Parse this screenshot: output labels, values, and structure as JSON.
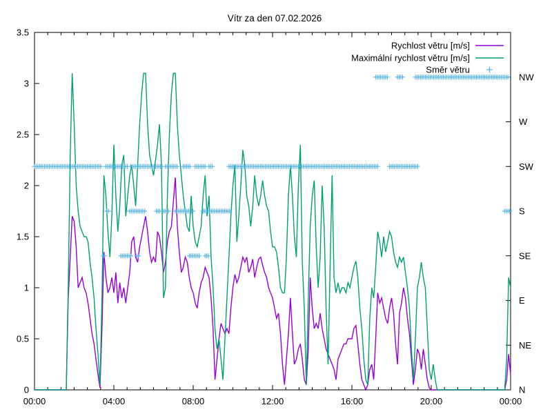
{
  "page": {
    "background": "#ffffff"
  },
  "chart_data": {
    "type": "line",
    "title": "Vítr za den 07.02.2026",
    "grid": false,
    "legend_position": "top-right-inside",
    "frame_color": "#000000",
    "text_color": "#000000",
    "x_axis": {
      "range_hours": [
        0,
        24
      ],
      "major_tick_hours": [
        0,
        4,
        8,
        12,
        16,
        20,
        24
      ],
      "major_tick_labels": [
        "00:00",
        "04:00",
        "08:00",
        "12:00",
        "16:00",
        "20:00",
        "00:00"
      ],
      "minor_tick_step_hours": 0.6667
    },
    "y_left_axis": {
      "range": [
        0,
        3.5
      ],
      "tick_values": [
        0,
        0.5,
        1,
        1.5,
        2,
        2.5,
        3,
        3.5
      ],
      "tick_labels": [
        "0",
        "0.5",
        "1",
        "1.5",
        "2",
        "2.5",
        "3",
        "3.5"
      ]
    },
    "y_right_axis": {
      "labels": [
        "N",
        "NE",
        "E",
        "SE",
        "S",
        "SW",
        "W",
        "NW"
      ],
      "values": [
        0,
        0.4375,
        0.875,
        1.3125,
        1.75,
        2.1875,
        2.625,
        3.0625
      ]
    },
    "sample_start_hour": 0,
    "sample_step_hours": 0.1,
    "series": [
      {
        "name": "Rychlost větru [m/s]",
        "color": "#9400d3",
        "kind": "line",
        "values": [
          0,
          0,
          0,
          0,
          0,
          0,
          0,
          0,
          0,
          0,
          0,
          0,
          0,
          0,
          0,
          0,
          0,
          0.9,
          1.3,
          1.7,
          1.65,
          1.4,
          1.0,
          1.05,
          1.1,
          1.0,
          0.95,
          0.85,
          0.7,
          0.55,
          0.45,
          0.3,
          0.15,
          0.02,
          0.6,
          1.35,
          1.1,
          0.95,
          1.0,
          1.1,
          0.95,
          1.15,
          0.85,
          1.05,
          0.9,
          1.0,
          0.85,
          1.0,
          1.15,
          1.45,
          1.5,
          1.3,
          1.25,
          1.4,
          1.5,
          1.6,
          1.7,
          1.55,
          1.35,
          1.25,
          1.3,
          1.25,
          1.55,
          1.5,
          1.35,
          1.15,
          1.25,
          1.45,
          1.55,
          1.6,
          1.85,
          2.08,
          1.6,
          1.35,
          1.15,
          1.2,
          1.3,
          1.25,
          1.1,
          1.0,
          0.95,
          0.85,
          0.8,
          0.95,
          1.05,
          1.1,
          1.2,
          1.15,
          1.1,
          0.9,
          0.6,
          0.1,
          0.3,
          0.5,
          0.65,
          0.6,
          0.55,
          0.6,
          0.55,
          0.8,
          1.0,
          1.13,
          1.05,
          1.1,
          1.2,
          1.3,
          1.25,
          1.3,
          1.15,
          1.2,
          1.28,
          1.1,
          1.2,
          1.28,
          1.3,
          1.22,
          1.15,
          1.1,
          1.0,
          0.95,
          0.9,
          0.8,
          0.7,
          0.75,
          0.55,
          0.25,
          0.05,
          0.3,
          0.55,
          0.9,
          0.55,
          0.25,
          0.3,
          0.4,
          0.45,
          0.3,
          0.1,
          0.05,
          0.4,
          1.1,
          0.8,
          0.6,
          0.65,
          0.6,
          0.75,
          0.6,
          0.5,
          0.4,
          0.35,
          0.3,
          0.25,
          0.2,
          0.1,
          0.3,
          0.35,
          0.4,
          0.45,
          0.45,
          0.5,
          0.5,
          0.5,
          0.6,
          0.63,
          0.45,
          0.25,
          0.1,
          0.05,
          0,
          0.05,
          0.2,
          0.25,
          0.1,
          0.5,
          0.95,
          0.85,
          0.9,
          0.8,
          0.7,
          0.65,
          0.8,
          0.9,
          0.75,
          0.45,
          0.25,
          0.75,
          0.85,
          1.0,
          0.9,
          0.7,
          0.55,
          0.3,
          0.05,
          0.2,
          0.4,
          0.35,
          0.2,
          0.4,
          0.25,
          0.1,
          0.02,
          0,
          0,
          0,
          0,
          0,
          0,
          0,
          0,
          0,
          0,
          0,
          0,
          0,
          0,
          0,
          0,
          0,
          0,
          0,
          0,
          0,
          0,
          0,
          0,
          0,
          0,
          0,
          0,
          0,
          0,
          0,
          0,
          0,
          0,
          0,
          0,
          0,
          0,
          0.1,
          0.35,
          0.15
        ]
      },
      {
        "name": "Maximální rychlost větru [m/s]",
        "color": "#009e73",
        "kind": "line",
        "values": [
          0,
          0,
          0,
          0,
          0,
          0,
          0,
          0,
          0,
          0,
          0,
          0,
          0,
          0,
          0,
          0,
          0,
          1.0,
          2.3,
          3.1,
          2.6,
          2.0,
          1.75,
          1.6,
          1.55,
          1.5,
          1.5,
          1.45,
          1.25,
          1.1,
          0.9,
          0.6,
          0.35,
          0.05,
          0.9,
          2.1,
          1.9,
          1.55,
          1.3,
          1.7,
          2.4,
          1.9,
          1.55,
          1.8,
          2.2,
          2.3,
          1.7,
          1.9,
          2.1,
          2.2,
          2.0,
          1.8,
          2.2,
          2.6,
          2.9,
          3.1,
          3.1,
          2.6,
          2.3,
          2.2,
          2.1,
          2.25,
          2.4,
          2.6,
          2.2,
          0.9,
          1.0,
          1.9,
          2.5,
          2.9,
          3.1,
          3.1,
          2.6,
          2.3,
          2.1,
          1.9,
          1.75,
          1.6,
          1.55,
          1.9,
          1.6,
          1.45,
          1.4,
          1.5,
          1.6,
          1.9,
          2.1,
          1.7,
          1.9,
          1.3,
          1.0,
          0.6,
          0.4,
          0.5,
          0.3,
          0.1,
          0.5,
          0.9,
          1.3,
          1.7,
          2.0,
          2.2,
          1.45,
          1.7,
          2.0,
          2.35,
          2.2,
          1.9,
          1.8,
          1.6,
          1.8,
          2.1,
          1.9,
          1.8,
          1.9,
          2.05,
          1.9,
          1.8,
          1.75,
          1.55,
          1.4,
          1.4,
          1.35,
          1.2,
          1.0,
          0.95,
          0.95,
          1.3,
          1.9,
          2.2,
          1.9,
          1.5,
          1.3,
          2.0,
          2.4,
          1.25,
          0.8,
          0.05,
          0.9,
          1.6,
          1.9,
          2.05,
          1.4,
          1.0,
          1.3,
          2.0,
          1.6,
          0.8,
          0.25,
          1.2,
          2.1,
          1.1,
          0.95,
          1.05,
          0.95,
          1.0,
          1.0,
          0.95,
          1.05,
          1.0,
          1.1,
          1.2,
          1.26,
          1.1,
          0.8,
          0.6,
          0.3,
          0.1,
          0.05,
          0.7,
          1.0,
          0.9,
          1.2,
          1.55,
          1.45,
          1.3,
          1.5,
          1.35,
          1.45,
          1.55,
          1.5,
          1.35,
          1.25,
          1.2,
          1.3,
          1.25,
          1.3,
          1.15,
          1.0,
          0.8,
          0.4,
          0.1,
          0.5,
          1.0,
          1.1,
          1.25,
          1.1,
          1.0,
          0.6,
          0.2,
          0.1,
          0.25,
          0.1,
          0,
          0,
          0,
          0,
          0,
          0,
          0,
          0,
          0,
          0,
          0,
          0,
          0,
          0,
          0,
          0,
          0,
          0,
          0,
          0,
          0,
          0,
          0,
          0,
          0,
          0,
          0,
          0,
          0,
          0,
          0,
          0,
          0,
          0,
          0,
          0.3,
          1.1,
          1.0
        ]
      },
      {
        "name": "Směr větru",
        "color": "#56b4e9",
        "kind": "points",
        "marker": "+",
        "marker_step_hours": 0.0833,
        "runs": [
          {
            "dir": "SW",
            "from": 0,
            "to": 3.35
          },
          {
            "dir": "SW",
            "from": 3.6,
            "to": 4.7
          },
          {
            "dir": "SW",
            "from": 4.85,
            "to": 6.5
          },
          {
            "dir": "SW",
            "from": 6.6,
            "to": 7.25
          },
          {
            "dir": "SW",
            "from": 7.5,
            "to": 7.9
          },
          {
            "dir": "SW",
            "from": 8.1,
            "to": 8.6
          },
          {
            "dir": "SW",
            "from": 8.8,
            "to": 9.0
          },
          {
            "dir": "SW",
            "from": 9.8,
            "to": 17.3
          },
          {
            "dir": "SW",
            "from": 17.9,
            "to": 19.35
          },
          {
            "dir": "S",
            "from": 3.65,
            "to": 3.8
          },
          {
            "dir": "S",
            "from": 4.8,
            "to": 5.6
          },
          {
            "dir": "S",
            "from": 6.15,
            "to": 6.35
          },
          {
            "dir": "S",
            "from": 6.5,
            "to": 6.8
          },
          {
            "dir": "S",
            "from": 7.1,
            "to": 7.8
          },
          {
            "dir": "S",
            "from": 7.9,
            "to": 8.05
          },
          {
            "dir": "S",
            "from": 8.5,
            "to": 9.9
          },
          {
            "dir": "S",
            "from": 23.7,
            "to": 23.95
          },
          {
            "dir": "SE",
            "from": 3.45,
            "to": 3.6
          },
          {
            "dir": "SE",
            "from": 4.35,
            "to": 4.9
          },
          {
            "dir": "SE",
            "from": 5.15,
            "to": 5.3
          },
          {
            "dir": "SE",
            "from": 7.8,
            "to": 8.3
          },
          {
            "dir": "SE",
            "from": 8.6,
            "to": 8.8
          },
          {
            "dir": "NW",
            "from": 17.2,
            "to": 17.85
          },
          {
            "dir": "NW",
            "from": 18.3,
            "to": 18.6
          },
          {
            "dir": "NW",
            "from": 19.2,
            "to": 23.9
          }
        ]
      }
    ]
  }
}
